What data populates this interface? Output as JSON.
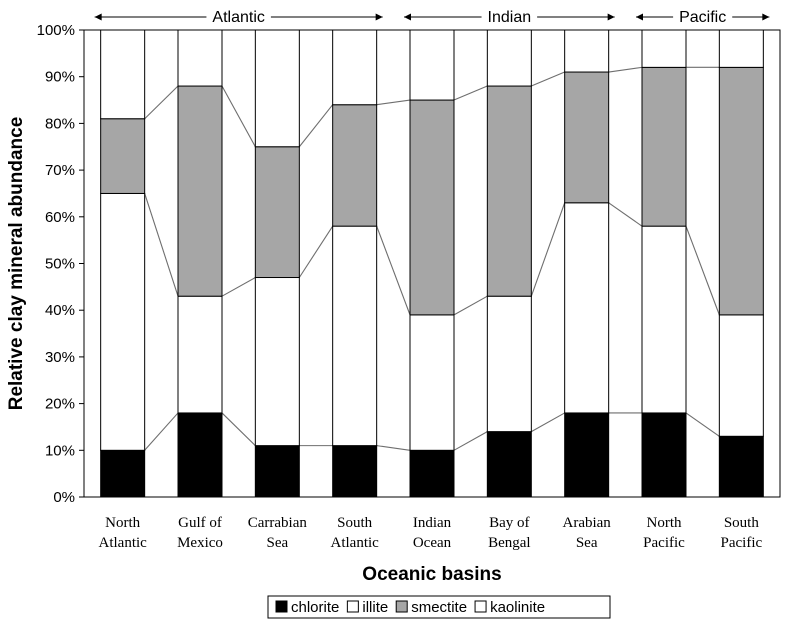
{
  "chart_data": {
    "type": "bar",
    "stacked": true,
    "categories": [
      [
        "North",
        "Atlantic"
      ],
      [
        "Gulf of",
        "Mexico"
      ],
      [
        "Carrabian",
        "Sea"
      ],
      [
        "South",
        "Atlantic"
      ],
      [
        "Indian",
        "Ocean"
      ],
      [
        "Bay of",
        "Bengal"
      ],
      [
        "Arabian",
        "Sea"
      ],
      [
        "North",
        "Pacific"
      ],
      [
        "South",
        "Pacific"
      ]
    ],
    "series": [
      {
        "name": "chlorite",
        "color": "#000000",
        "values": [
          10,
          18,
          11,
          11,
          10,
          14,
          18,
          18,
          13
        ]
      },
      {
        "name": "illite",
        "color": "#ffffff",
        "values": [
          55,
          25,
          36,
          47,
          29,
          29,
          45,
          40,
          26
        ]
      },
      {
        "name": "smectite",
        "color": "#a6a6a6",
        "values": [
          16,
          45,
          28,
          26,
          46,
          45,
          28,
          34,
          53
        ]
      },
      {
        "name": "kaolinite",
        "color": "#ffffff",
        "values": [
          19,
          12,
          25,
          16,
          15,
          12,
          9,
          8,
          8
        ]
      }
    ],
    "ylim": [
      0,
      100
    ],
    "yticks": [
      "0%",
      "10%",
      "20%",
      "30%",
      "40%",
      "50%",
      "60%",
      "70%",
      "80%",
      "90%",
      "100%"
    ],
    "xlabel": "Oceanic basins",
    "ylabel": "Relative clay mineral abundance",
    "regions": [
      {
        "label": "Atlantic",
        "from": 0,
        "to": 3
      },
      {
        "label": "Indian",
        "from": 4,
        "to": 6
      },
      {
        "label": "Pacific",
        "from": 7,
        "to": 8
      }
    ],
    "legend_position": "bottom"
  }
}
